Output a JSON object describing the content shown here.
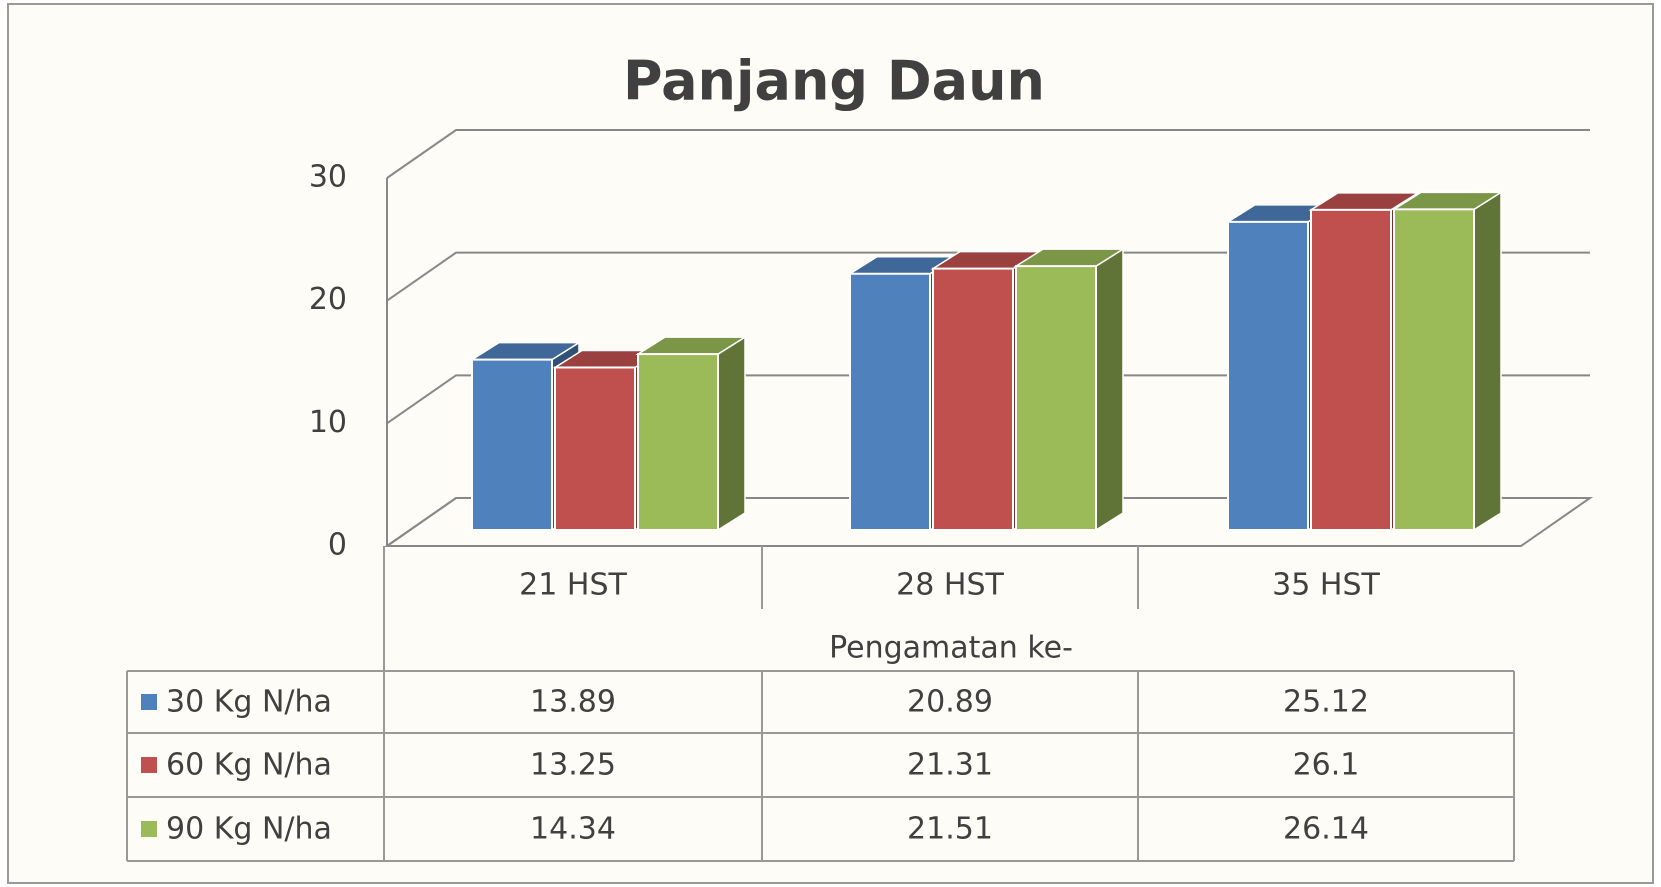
{
  "chart_data": {
    "type": "bar3d",
    "title": "Panjang Daun",
    "x_label": "Pengamatan ke-",
    "categories": [
      "21 HST",
      "28 HST",
      "35 HST"
    ],
    "series": [
      {
        "name": "30 Kg N/ha",
        "color": "#4f81bd",
        "values": [
          13.89,
          20.89,
          25.12
        ]
      },
      {
        "name": "60 Kg N/ha",
        "color": "#c0504d",
        "values": [
          13.25,
          21.31,
          26.1
        ]
      },
      {
        "name": "90 Kg N/ha",
        "color": "#9bbb59",
        "values": [
          14.34,
          21.51,
          26.14
        ]
      }
    ],
    "ylim": [
      0,
      30
    ],
    "yticks": [
      0,
      10,
      20,
      30
    ],
    "grid": true
  }
}
